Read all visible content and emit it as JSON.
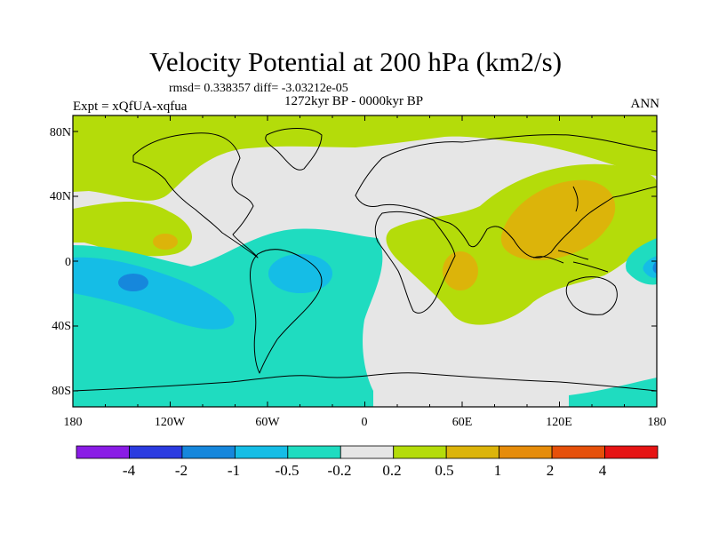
{
  "title": "Velocity Potential at 200 hPa (km2/s)",
  "stats": "rmsd= 0.338357 diff= -3.03212e-05",
  "expt": "Expt = xQfUA-xqfua",
  "period": "1272kyr BP - 0000kyr BP",
  "season": "ANN",
  "lat_labels": [
    "80N",
    "40N",
    "0",
    "40S",
    "80S"
  ],
  "lon_labels": [
    "180",
    "120W",
    "60W",
    "0",
    "60E",
    "120E",
    "180"
  ],
  "colorbar": {
    "labels": [
      "-4",
      "-2",
      "-1",
      "-0.5",
      "-0.2",
      "0.2",
      "0.5",
      "1",
      "2",
      "4"
    ],
    "colors": [
      "#8a1ce6",
      "#2b3be0",
      "#1687dc",
      "#15bde6",
      "#1fdcc0",
      "#e6e6e6",
      "#b4dc0a",
      "#dcb40a",
      "#e68c0a",
      "#e6500a",
      "#e61414"
    ]
  },
  "fill_colors": {
    "ocean_background": "#e6e6e6",
    "negative_weak": "#1fdcc0",
    "negative_mid": "#15bde6",
    "negative_strong": "#1687dc",
    "positive_weak": "#b4dc0a",
    "positive_mid": "#dcb40a"
  }
}
